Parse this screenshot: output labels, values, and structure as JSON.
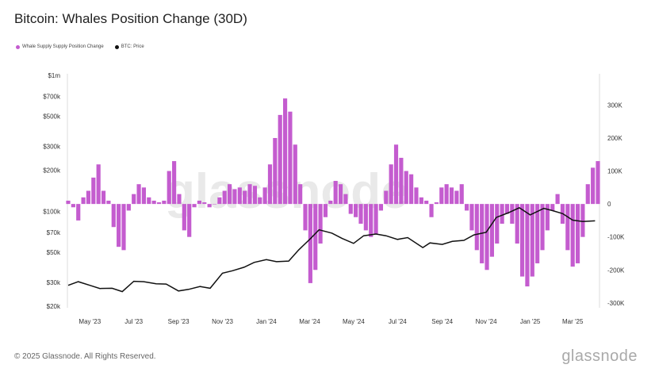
{
  "title": "Bitcoin: Whales Position Change (30D)",
  "legend": [
    {
      "label": "Whale Supply Supply Position Change",
      "color": "#c45ccf"
    },
    {
      "label": "BTC: Price",
      "color": "#111111"
    }
  ],
  "watermark": "glassnode",
  "footer": "© 2025 Glassnode. All Rights Reserved.",
  "brand": "glassnode",
  "colors": {
    "bars": "#c45ccf",
    "price": "#111111",
    "axis": "#dddddd"
  },
  "chart_data": {
    "type": "bar",
    "title": "Bitcoin: Whales Position Change (30D)",
    "xlabel": "",
    "ylabel": "",
    "x_ticks": [
      "May '23",
      "Jul '23",
      "Sep '23",
      "Nov '23",
      "Jan '24",
      "Mar '24",
      "May '24",
      "Jul '24",
      "Sep '24",
      "Nov '24",
      "Jan '25",
      "Mar '25"
    ],
    "x_range": [
      "2023-04-01",
      "2025-04-05"
    ],
    "y_left": {
      "label": "BTC: Price",
      "scale": "log",
      "ticks": [
        "$20k",
        "$30k",
        "$50k",
        "$70k",
        "$100k",
        "$200k",
        "$300k",
        "$500k",
        "$700k",
        "$1m"
      ],
      "tick_values": [
        20000,
        30000,
        50000,
        70000,
        100000,
        200000,
        300000,
        500000,
        700000,
        1000000
      ],
      "range": [
        20000,
        1000000
      ]
    },
    "y_right": {
      "label": "Whale Supply Supply Position Change",
      "ticks": [
        "300K",
        "200K",
        "100K",
        "0",
        "-100K",
        "-200K",
        "-300K"
      ],
      "tick_values": [
        300000,
        200000,
        100000,
        0,
        -100000,
        -200000,
        -300000
      ],
      "range": [
        -310000,
        390000
      ]
    },
    "series": [
      {
        "name": "Whale Supply Supply Position Change",
        "kind": "bar",
        "axis": "right",
        "points": [
          [
            "2023-04-01",
            10000
          ],
          [
            "2023-04-08",
            -10000
          ],
          [
            "2023-04-15",
            -50000
          ],
          [
            "2023-04-22",
            20000
          ],
          [
            "2023-04-29",
            40000
          ],
          [
            "2023-05-06",
            80000
          ],
          [
            "2023-05-13",
            120000
          ],
          [
            "2023-05-20",
            40000
          ],
          [
            "2023-05-27",
            10000
          ],
          [
            "2023-06-03",
            -70000
          ],
          [
            "2023-06-10",
            -130000
          ],
          [
            "2023-06-17",
            -140000
          ],
          [
            "2023-06-24",
            -20000
          ],
          [
            "2023-07-01",
            30000
          ],
          [
            "2023-07-08",
            60000
          ],
          [
            "2023-07-15",
            50000
          ],
          [
            "2023-07-22",
            20000
          ],
          [
            "2023-07-29",
            10000
          ],
          [
            "2023-08-05",
            5000
          ],
          [
            "2023-08-12",
            10000
          ],
          [
            "2023-08-19",
            100000
          ],
          [
            "2023-08-26",
            130000
          ],
          [
            "2023-09-02",
            30000
          ],
          [
            "2023-09-09",
            -80000
          ],
          [
            "2023-09-16",
            -100000
          ],
          [
            "2023-09-23",
            -10000
          ],
          [
            "2023-09-30",
            10000
          ],
          [
            "2023-10-07",
            5000
          ],
          [
            "2023-10-14",
            -10000
          ],
          [
            "2023-10-21",
            0
          ],
          [
            "2023-10-28",
            20000
          ],
          [
            "2023-11-04",
            40000
          ],
          [
            "2023-11-11",
            60000
          ],
          [
            "2023-11-18",
            45000
          ],
          [
            "2023-11-25",
            50000
          ],
          [
            "2023-12-02",
            40000
          ],
          [
            "2023-12-09",
            60000
          ],
          [
            "2023-12-16",
            55000
          ],
          [
            "2023-12-23",
            20000
          ],
          [
            "2023-12-30",
            50000
          ],
          [
            "2024-01-06",
            120000
          ],
          [
            "2024-01-13",
            200000
          ],
          [
            "2024-01-20",
            270000
          ],
          [
            "2024-01-27",
            320000
          ],
          [
            "2024-02-03",
            280000
          ],
          [
            "2024-02-10",
            180000
          ],
          [
            "2024-02-17",
            60000
          ],
          [
            "2024-02-24",
            -80000
          ],
          [
            "2024-03-02",
            -240000
          ],
          [
            "2024-03-09",
            -200000
          ],
          [
            "2024-03-16",
            -120000
          ],
          [
            "2024-03-23",
            -40000
          ],
          [
            "2024-03-30",
            10000
          ],
          [
            "2024-04-06",
            70000
          ],
          [
            "2024-04-13",
            60000
          ],
          [
            "2024-04-20",
            30000
          ],
          [
            "2024-04-27",
            -30000
          ],
          [
            "2024-05-04",
            -40000
          ],
          [
            "2024-05-11",
            -60000
          ],
          [
            "2024-05-18",
            -80000
          ],
          [
            "2024-05-25",
            -100000
          ],
          [
            "2024-06-01",
            -90000
          ],
          [
            "2024-06-08",
            -20000
          ],
          [
            "2024-06-15",
            40000
          ],
          [
            "2024-06-22",
            120000
          ],
          [
            "2024-06-29",
            180000
          ],
          [
            "2024-07-06",
            140000
          ],
          [
            "2024-07-13",
            100000
          ],
          [
            "2024-07-20",
            90000
          ],
          [
            "2024-07-27",
            50000
          ],
          [
            "2024-08-03",
            20000
          ],
          [
            "2024-08-10",
            10000
          ],
          [
            "2024-08-17",
            -40000
          ],
          [
            "2024-08-24",
            5000
          ],
          [
            "2024-08-31",
            50000
          ],
          [
            "2024-09-07",
            60000
          ],
          [
            "2024-09-14",
            50000
          ],
          [
            "2024-09-21",
            40000
          ],
          [
            "2024-09-28",
            60000
          ],
          [
            "2024-10-05",
            -20000
          ],
          [
            "2024-10-12",
            -80000
          ],
          [
            "2024-10-19",
            -140000
          ],
          [
            "2024-10-26",
            -180000
          ],
          [
            "2024-11-02",
            -200000
          ],
          [
            "2024-11-09",
            -160000
          ],
          [
            "2024-11-16",
            -120000
          ],
          [
            "2024-11-23",
            -60000
          ],
          [
            "2024-11-30",
            -30000
          ],
          [
            "2024-12-07",
            -60000
          ],
          [
            "2024-12-14",
            -120000
          ],
          [
            "2024-12-21",
            -220000
          ],
          [
            "2024-12-28",
            -250000
          ],
          [
            "2025-01-04",
            -220000
          ],
          [
            "2025-01-11",
            -180000
          ],
          [
            "2025-01-18",
            -140000
          ],
          [
            "2025-01-25",
            -80000
          ],
          [
            "2025-02-01",
            -20000
          ],
          [
            "2025-02-08",
            30000
          ],
          [
            "2025-02-15",
            -60000
          ],
          [
            "2025-02-22",
            -140000
          ],
          [
            "2025-03-01",
            -190000
          ],
          [
            "2025-03-08",
            -180000
          ],
          [
            "2025-03-15",
            -100000
          ],
          [
            "2025-03-22",
            60000
          ],
          [
            "2025-03-29",
            110000
          ],
          [
            "2025-04-05",
            130000
          ]
        ]
      },
      {
        "name": "BTC: Price",
        "kind": "line",
        "axis": "left",
        "points": [
          [
            "2023-04-01",
            28500
          ],
          [
            "2023-04-15",
            30300
          ],
          [
            "2023-05-01",
            28500
          ],
          [
            "2023-05-15",
            27000
          ],
          [
            "2023-06-01",
            27100
          ],
          [
            "2023-06-15",
            25600
          ],
          [
            "2023-07-01",
            30500
          ],
          [
            "2023-07-15",
            30300
          ],
          [
            "2023-08-01",
            29200
          ],
          [
            "2023-08-15",
            29100
          ],
          [
            "2023-09-01",
            25900
          ],
          [
            "2023-09-15",
            26600
          ],
          [
            "2023-10-01",
            27900
          ],
          [
            "2023-10-15",
            27100
          ],
          [
            "2023-11-01",
            35000
          ],
          [
            "2023-11-15",
            36500
          ],
          [
            "2023-12-01",
            38700
          ],
          [
            "2023-12-15",
            42000
          ],
          [
            "2024-01-01",
            44000
          ],
          [
            "2024-01-15",
            42500
          ],
          [
            "2024-02-01",
            43000
          ],
          [
            "2024-02-15",
            52000
          ],
          [
            "2024-03-01",
            62000
          ],
          [
            "2024-03-14",
            73000
          ],
          [
            "2024-04-01",
            69000
          ],
          [
            "2024-04-15",
            63000
          ],
          [
            "2024-05-01",
            58000
          ],
          [
            "2024-05-15",
            66000
          ],
          [
            "2024-06-01",
            68000
          ],
          [
            "2024-06-15",
            66000
          ],
          [
            "2024-07-01",
            62000
          ],
          [
            "2024-07-15",
            64000
          ],
          [
            "2024-08-05",
            54000
          ],
          [
            "2024-08-15",
            58500
          ],
          [
            "2024-09-01",
            57000
          ],
          [
            "2024-09-15",
            60000
          ],
          [
            "2024-10-01",
            61000
          ],
          [
            "2024-10-15",
            67000
          ],
          [
            "2024-11-01",
            70000
          ],
          [
            "2024-11-15",
            90000
          ],
          [
            "2024-12-01",
            97000
          ],
          [
            "2024-12-17",
            106000
          ],
          [
            "2025-01-01",
            94000
          ],
          [
            "2025-01-20",
            105000
          ],
          [
            "2025-02-01",
            101000
          ],
          [
            "2025-02-15",
            96000
          ],
          [
            "2025-03-01",
            86000
          ],
          [
            "2025-03-15",
            84000
          ],
          [
            "2025-04-01",
            85000
          ]
        ]
      }
    ]
  }
}
